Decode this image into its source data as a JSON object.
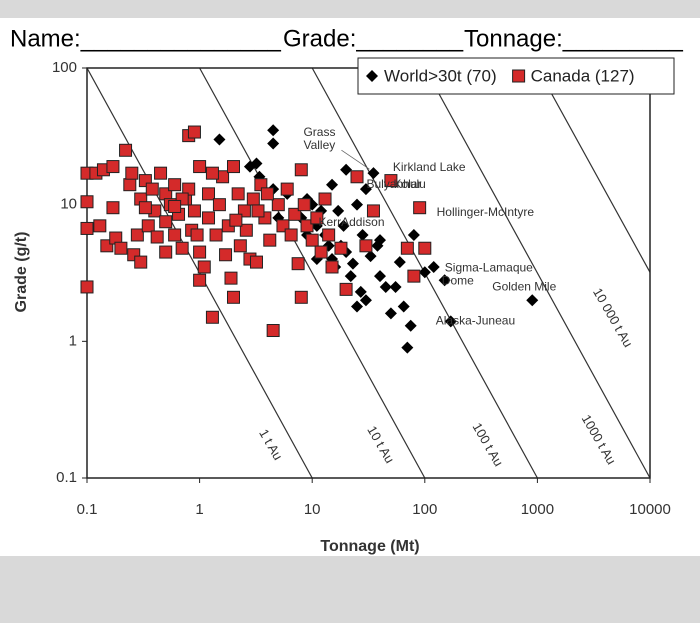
{
  "header": {
    "name": "Name:_______________",
    "grade": "Grade:________",
    "tonnage": "Tonnage:_________"
  },
  "chart_data": {
    "type": "scatter",
    "log_x": true,
    "log_y": true,
    "xlabel": "Tonnage (Mt)",
    "ylabel": "Grade (g/t)",
    "xlim": [
      0.1,
      10000
    ],
    "ylim": [
      0.1,
      100
    ],
    "xticks": [
      0.1,
      1,
      10,
      100,
      1000,
      10000
    ],
    "yticks": [
      0.1,
      1,
      10,
      100
    ],
    "legend": "top-right",
    "series": [
      {
        "name": "World>30t (70)",
        "color": "#000000",
        "marker": "diamond",
        "x": [
          1.5,
          4.5,
          4.5,
          2.8,
          3.2,
          3.4,
          4.5,
          6,
          5,
          8,
          9,
          10,
          11,
          12,
          13,
          14,
          15,
          16,
          17,
          18,
          20,
          22,
          23,
          25,
          27,
          30,
          33,
          35,
          38,
          40,
          45,
          50,
          55,
          60,
          65,
          70,
          75,
          80,
          100,
          120,
          150,
          170,
          900,
          30,
          25,
          20,
          15,
          9,
          11,
          19,
          28,
          40
        ],
        "y": [
          30,
          35,
          28,
          19,
          20,
          16,
          13,
          12,
          8,
          8,
          11,
          10,
          7,
          9,
          6,
          5,
          4,
          3.5,
          9,
          5,
          4.5,
          3,
          3.7,
          1.8,
          2.3,
          2,
          4.2,
          17,
          5,
          3,
          2.5,
          1.6,
          2.5,
          3.8,
          1.8,
          0.9,
          1.3,
          6,
          3.2,
          3.5,
          2.8,
          1.4,
          2,
          13,
          10,
          18,
          14,
          6,
          4,
          7,
          6,
          5.5
        ]
      },
      {
        "name": "Canada (127)",
        "color": "#d42a2a",
        "marker": "square",
        "x": [
          0.1,
          0.1,
          0.1,
          0.1,
          0.12,
          0.13,
          0.14,
          0.15,
          0.17,
          0.17,
          0.18,
          0.2,
          0.22,
          0.24,
          0.25,
          0.26,
          0.28,
          0.3,
          0.3,
          0.33,
          0.35,
          0.38,
          0.4,
          0.42,
          0.45,
          0.5,
          0.5,
          0.55,
          0.6,
          0.6,
          0.65,
          0.7,
          0.75,
          0.8,
          0.8,
          0.85,
          0.9,
          0.9,
          1,
          1,
          1,
          1.1,
          1.2,
          1.2,
          1.3,
          1.4,
          1.5,
          1.6,
          1.7,
          1.8,
          1.9,
          2,
          2,
          2.2,
          2.3,
          2.5,
          2.6,
          2.8,
          3,
          3.2,
          3.5,
          3.8,
          4.2,
          4.5,
          5,
          5.5,
          6,
          7,
          7.5,
          8,
          8.5,
          8,
          9,
          10,
          11,
          12,
          13,
          14,
          15,
          18,
          20,
          25,
          30,
          35,
          50,
          70,
          90,
          100,
          80,
          0.95,
          0.5,
          1.3,
          2.1,
          3.3,
          4,
          6.5,
          0.33,
          0.7,
          0.6
        ],
        "y": [
          17,
          10.5,
          6.7,
          2.5,
          17,
          7,
          18,
          5,
          19,
          9.5,
          5.7,
          4.8,
          25,
          14,
          17,
          4.3,
          6,
          3.8,
          11,
          15,
          7,
          13,
          9,
          5.8,
          17,
          12,
          7.5,
          10,
          6,
          14,
          8.5,
          4.8,
          11,
          13,
          32,
          6.5,
          34,
          9,
          4.5,
          19,
          2.8,
          3.5,
          12,
          8,
          1.5,
          6,
          10,
          16,
          4.3,
          7,
          2.9,
          2.1,
          19,
          12,
          5,
          9,
          6.5,
          4,
          11,
          3.8,
          14,
          8,
          5.5,
          1.2,
          10,
          7,
          13,
          8.5,
          3.7,
          18,
          10,
          2.1,
          7,
          5.5,
          8,
          4.5,
          11,
          6,
          3.5,
          4.8,
          2.4,
          16,
          5,
          9,
          15,
          4.8,
          9.5,
          4.8,
          3,
          6,
          4.5,
          17,
          7.7,
          9,
          12,
          6,
          9.5,
          11,
          9.7
        ]
      }
    ],
    "tonnage_lines": [
      {
        "label": "1 t Au",
        "from": [
          0.1,
          100
        ],
        "to": [
          10,
          0.1
        ]
      },
      {
        "label": "10 t Au",
        "from": [
          1,
          100
        ],
        "to": [
          100,
          0.1
        ]
      },
      {
        "label": "100 t Au",
        "from": [
          10,
          100
        ],
        "to": [
          1000,
          0.1
        ]
      },
      {
        "label": "1000 t Au",
        "from": [
          100,
          100
        ],
        "to": [
          10000,
          0.1
        ]
      },
      {
        "label": "10 000 t Au",
        "from": [
          1000,
          100
        ],
        "to": [
          10000,
          3.2
        ]
      }
    ],
    "annotations": [
      {
        "text": "Grass Valley",
        "x": 35,
        "y": 17
      },
      {
        "text": "Kirkland Lake",
        "x": 50,
        "y": 15
      },
      {
        "text": "Kolar",
        "x": 35,
        "y": 14
      },
      {
        "text": "Bulyanhulu",
        "x": 35,
        "y": 14
      },
      {
        "text": "Hollinger-McIntyre",
        "x": 90,
        "y": 9.5
      },
      {
        "text": "KerrAddison",
        "x": 35,
        "y": 9
      },
      {
        "text": "Sigma-Lamaque",
        "x": 100,
        "y": 4.8
      },
      {
        "text": "Dome",
        "x": 100,
        "y": 4.8
      },
      {
        "text": "Golden Mile",
        "x": 900,
        "y": 2
      },
      {
        "text": "Alaska-Juneau",
        "x": 170,
        "y": 1.4
      }
    ]
  }
}
